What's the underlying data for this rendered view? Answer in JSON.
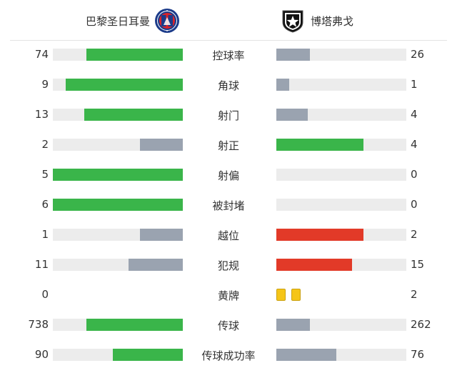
{
  "colors": {
    "green": "#3ab54a",
    "gray": "#9aa3b0",
    "red": "#e23a28",
    "track": "#ececec",
    "yellow_card": "#f5c518"
  },
  "home": {
    "name": "巴黎圣日耳曼",
    "logo": "psg-crest-icon"
  },
  "away": {
    "name": "博塔弗戈",
    "logo": "botafogo-crest-icon"
  },
  "stats": [
    {
      "label": "控球率",
      "home": "74",
      "away": "26",
      "home_fill": 0.74,
      "away_fill": 0.26,
      "home_color": "green",
      "away_color": "gray"
    },
    {
      "label": "角球",
      "home": "9",
      "away": "1",
      "home_fill": 0.9,
      "away_fill": 0.1,
      "home_color": "green",
      "away_color": "gray"
    },
    {
      "label": "射门",
      "home": "13",
      "away": "4",
      "home_fill": 0.76,
      "away_fill": 0.24,
      "home_color": "green",
      "away_color": "gray"
    },
    {
      "label": "射正",
      "home": "2",
      "away": "4",
      "home_fill": 0.33,
      "away_fill": 0.67,
      "home_color": "gray",
      "away_color": "green"
    },
    {
      "label": "射偏",
      "home": "5",
      "away": "0",
      "home_fill": 1.0,
      "away_fill": 0.0,
      "home_color": "green",
      "away_color": "gray"
    },
    {
      "label": "被封堵",
      "home": "6",
      "away": "0",
      "home_fill": 1.0,
      "away_fill": 0.0,
      "home_color": "green",
      "away_color": "gray"
    },
    {
      "label": "越位",
      "home": "1",
      "away": "2",
      "home_fill": 0.33,
      "away_fill": 0.67,
      "home_color": "gray",
      "away_color": "red"
    },
    {
      "label": "犯规",
      "home": "11",
      "away": "15",
      "home_fill": 0.42,
      "away_fill": 0.58,
      "home_color": "gray",
      "away_color": "red"
    },
    {
      "label": "黄牌",
      "home": "0",
      "away": "2",
      "home_cards": 0,
      "away_cards": 2
    },
    {
      "label": "传球",
      "home": "738",
      "away": "262",
      "home_fill": 0.74,
      "away_fill": 0.26,
      "home_color": "green",
      "away_color": "gray"
    },
    {
      "label": "传球成功率",
      "home": "90",
      "away": "76",
      "home_fill": 0.54,
      "away_fill": 0.46,
      "home_color": "green",
      "away_color": "gray"
    }
  ]
}
